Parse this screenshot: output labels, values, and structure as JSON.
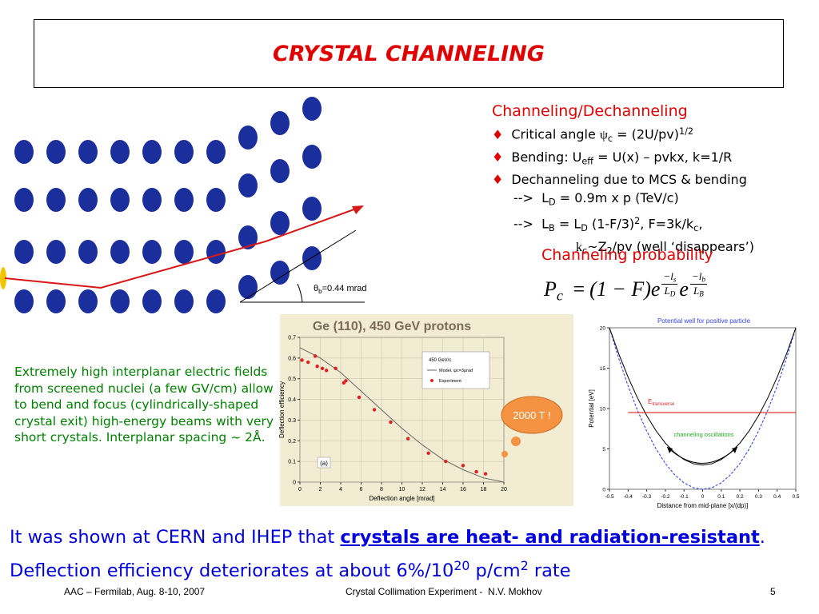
{
  "title": "CRYSTAL CHANNELING",
  "diagram": {
    "theta": "θ",
    "theta_sub": "b",
    "angle": "=0.44 mrad"
  },
  "bullet": "♦",
  "heading": "Channeling/Dechanneling",
  "items": [
    [
      {
        "text": "Critical angle "
      },
      {
        "text": "ψ",
        "style": "serif"
      },
      {
        "text": "c",
        "style": "sub"
      },
      {
        "text": " = (2U/pv)"
      },
      {
        "text": "1/2",
        "style": "sup"
      }
    ],
    [
      {
        "text": "Bending: U"
      },
      {
        "text": "eff",
        "style": "sub"
      },
      {
        "text": " = U(x) – pvkx, k=1/R"
      }
    ],
    [
      {
        "text": "Dechanneling due to MCS & bending"
      }
    ]
  ],
  "sublines": [
    [
      {
        "text": "-->  L"
      },
      {
        "text": "D",
        "style": "sub"
      },
      {
        "text": " = 0.9m x p (TeV/c)"
      }
    ],
    [
      {
        "text": "-->  L"
      },
      {
        "text": "B",
        "style": "sub"
      },
      {
        "text": " = L"
      },
      {
        "text": "D",
        "style": "sub"
      },
      {
        "text": " (1-F/3)"
      },
      {
        "text": "2",
        "style": "sup"
      },
      {
        "text": ", F=3k/k"
      },
      {
        "text": "c",
        "style": "sub"
      },
      {
        "text": ","
      }
    ],
    [
      {
        "text": "k",
        "style": "serif"
      },
      {
        "text": "c",
        "style": "sub"
      },
      {
        "text": "~Z"
      },
      {
        "text": "2",
        "style": "sub"
      },
      {
        "text": "/pv (well ‘disappears’)"
      }
    ]
  ],
  "probability_heading": "Channeling probability",
  "formula": {
    "p": "P",
    "p_sub": "c",
    "eq": "=",
    "factor": "(1 − F)",
    "e": "e",
    "exp1_num": "−l",
    "exp1_num_sub": "s",
    "exp1_den": "L",
    "exp1_den_sub": "D",
    "exp2_num": "−l",
    "exp2_num_sub": "b",
    "exp2_den": "L",
    "exp2_den_sub": "B"
  },
  "left_text": "Extremely high interplanar electric fields from screened nuclei (a few GV/cm) allow to bend and focus (cylindrically-shaped crystal exit) high-energy beams with very short crystals. Interplanar spacing ~ 2Å.",
  "chart_data": [
    {
      "type": "scatter",
      "title": "Ge (110), 450 GeV protons",
      "xlabel": "Deflection angle [mrad]",
      "ylabel": "Deflection efficiency",
      "xlim": [
        0,
        20
      ],
      "ylim": [
        0,
        0.7
      ],
      "xticks": [
        0,
        2,
        4,
        6,
        8,
        10,
        12,
        14,
        16,
        18,
        20
      ],
      "yticks": [
        0,
        0.1,
        0.2,
        0.3,
        0.4,
        0.5,
        0.6,
        0.7
      ],
      "legend_title": "450 GeV/c",
      "annotation": "(a)",
      "callout": "2000 T !",
      "series": [
        {
          "name": "Model, ψc=3μrad",
          "type": "line",
          "color": "#666666",
          "x": [
            0,
            2,
            4,
            6,
            8,
            10,
            12,
            14,
            16,
            18,
            20
          ],
          "values": [
            0.65,
            0.6,
            0.53,
            0.44,
            0.35,
            0.26,
            0.18,
            0.11,
            0.06,
            0.02,
            0
          ]
        },
        {
          "name": "Experiment",
          "type": "scatter",
          "color": "#e02020",
          "x": [
            0.2,
            0.8,
            1.5,
            1.7,
            2.2,
            2.6,
            3.5,
            4.3,
            4.5,
            5.8,
            7.3,
            8.9,
            10.6,
            12.6,
            14.3,
            16,
            17.3,
            18.2
          ],
          "values": [
            0.59,
            0.58,
            0.61,
            0.56,
            0.55,
            0.54,
            0.55,
            0.48,
            0.49,
            0.41,
            0.35,
            0.29,
            0.21,
            0.14,
            0.1,
            0.08,
            0.05,
            0.04
          ]
        }
      ]
    },
    {
      "type": "line",
      "title": "Potential well for positive particle",
      "xlabel": "Distance from mid-plane [x/(dp)]",
      "ylabel": "Potential [eV]",
      "xlim": [
        -0.5,
        0.5
      ],
      "ylim": [
        0,
        20
      ],
      "xticks": [
        -0.5,
        -0.4,
        -0.3,
        -0.2,
        -0.1,
        0,
        0.1,
        0.2,
        0.3,
        0.4,
        0.5
      ],
      "yticks": [
        0,
        5,
        10,
        15,
        20
      ],
      "energy_label": "E",
      "energy_label_sub": "transverse",
      "oscillation_label": "channeling oscillations",
      "series": [
        {
          "type": "line",
          "color": "#3344ee",
          "dash": true,
          "x": [
            -0.5,
            -0.45,
            -0.4,
            -0.35,
            -0.3,
            -0.25,
            -0.2,
            -0.15,
            -0.1,
            -0.05,
            0,
            0.05,
            0.1,
            0.15,
            0.2,
            0.25,
            0.3,
            0.35,
            0.4,
            0.45,
            0.5
          ],
          "values": [
            20,
            16.2,
            12.8,
            9.8,
            7.2,
            5,
            3.2,
            1.8,
            0.8,
            0.2,
            0,
            0.2,
            0.8,
            1.8,
            3.2,
            5,
            7.2,
            9.8,
            12.8,
            16.2,
            20
          ]
        },
        {
          "type": "line",
          "color": "#111111",
          "dash": false,
          "x": [
            -0.5,
            -0.45,
            -0.4,
            -0.35,
            -0.3,
            -0.25,
            -0.2,
            -0.15,
            -0.1,
            -0.05,
            0,
            0.05,
            0.1,
            0.15,
            0.2,
            0.25,
            0.3,
            0.35,
            0.4,
            0.45,
            0.5
          ],
          "values": [
            20,
            16.77,
            13.88,
            11.33,
            9.12,
            7.25,
            5.72,
            4.53,
            3.68,
            3.17,
            3,
            3.17,
            3.68,
            4.53,
            5.72,
            7.25,
            9.12,
            11.33,
            13.88,
            16.77,
            20
          ]
        },
        {
          "type": "line",
          "color": "#dd2222",
          "dash": false,
          "x": [
            -0.4,
            0.5
          ],
          "values": [
            9.5,
            9.5
          ]
        }
      ]
    }
  ],
  "bottom": [
    {
      "text": "It was shown at CERN and IHEP that "
    },
    {
      "text": "crystals are heat- and radiation-resistant",
      "style": "bu"
    },
    {
      "text": ". Deflection efficiency deteriorates at about 6%/10"
    },
    {
      "text": "20",
      "style": "sup"
    },
    {
      "text": " p/cm"
    },
    {
      "text": "2",
      "style": "sup"
    },
    {
      "text": " rate"
    }
  ],
  "footer": {
    "left": "AAC – Fermilab, Aug. 8-10, 2007",
    "center": "Crystal Collimation Experiment -  N.V. Mokhov",
    "page": "5"
  }
}
